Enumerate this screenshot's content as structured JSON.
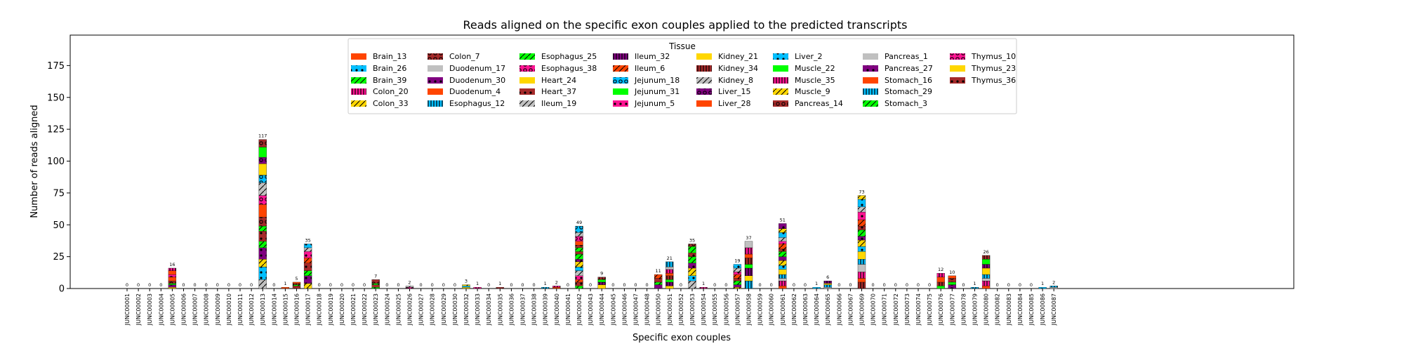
{
  "chart_data": {
    "type": "bar",
    "stacked": true,
    "title": "Reads aligned on the specific exon couples applied to the predicted transcripts",
    "xlabel": "Specific exon couples",
    "ylabel": "Number of reads aligned",
    "ylim": [
      0,
      195
    ],
    "yticks": [
      0,
      25,
      50,
      75,
      100,
      125,
      150,
      175
    ],
    "legend_title": "Tissue",
    "legend_position": "top-center",
    "grid": false,
    "categories": [
      "JUNC00001",
      "JUNC00002",
      "JUNC00003",
      "JUNC00004",
      "JUNC00005",
      "JUNC00006",
      "JUNC00007",
      "JUNC00008",
      "JUNC00009",
      "JUNC00010",
      "JUNC00011",
      "JUNC00012",
      "JUNC00013",
      "JUNC00014",
      "JUNC00015",
      "JUNC00016",
      "JUNC00017",
      "JUNC00018",
      "JUNC00019",
      "JUNC00020",
      "JUNC00021",
      "JUNC00022",
      "JUNC00023",
      "JUNC00024",
      "JUNC00025",
      "JUNC00026",
      "JUNC00027",
      "JUNC00028",
      "JUNC00029",
      "JUNC00030",
      "JUNC00032",
      "JUNC00033",
      "JUNC00034",
      "JUNC00035",
      "JUNC00036",
      "JUNC00037",
      "JUNC00038",
      "JUNC00039",
      "JUNC00040",
      "JUNC00041",
      "JUNC00042",
      "JUNC00043",
      "JUNC00044",
      "JUNC00045",
      "JUNC00046",
      "JUNC00047",
      "JUNC00048",
      "JUNC00050",
      "JUNC00051",
      "JUNC00052",
      "JUNC00053",
      "JUNC00054",
      "JUNC00055",
      "JUNC00056",
      "JUNC00057",
      "JUNC00058",
      "JUNC00059",
      "JUNC00060",
      "JUNC00061",
      "JUNC00062",
      "JUNC00063",
      "JUNC00064",
      "JUNC00065",
      "JUNC00066",
      "JUNC00067",
      "JUNC00069",
      "JUNC00070",
      "JUNC00071",
      "JUNC00072",
      "JUNC00073",
      "JUNC00074",
      "JUNC00075",
      "JUNC00076",
      "JUNC00077",
      "JUNC00078",
      "JUNC00079",
      "JUNC00080",
      "JUNC00082",
      "JUNC00083",
      "JUNC00084",
      "JUNC00085",
      "JUNC00086",
      "JUNC00087"
    ],
    "totals": [
      0,
      0,
      0,
      0,
      16,
      0,
      0,
      0,
      0,
      0,
      0,
      0,
      117,
      0,
      1,
      5,
      35,
      0,
      0,
      0,
      0,
      0,
      7,
      0,
      0,
      2,
      0,
      0,
      0,
      0,
      3,
      1,
      0,
      1,
      0,
      0,
      0,
      1,
      2,
      0,
      49,
      0,
      9,
      0,
      0,
      0,
      0,
      11,
      21,
      0,
      35,
      1,
      0,
      0,
      19,
      37,
      0,
      0,
      51,
      0,
      0,
      1,
      6,
      0,
      0,
      73,
      0,
      0,
      0,
      0,
      0,
      0,
      12,
      10,
      0,
      1,
      26,
      0,
      0,
      0,
      0,
      1,
      2
    ],
    "series": [
      {
        "name": "Brain_13",
        "color": "#ff4500",
        "pattern": "solid"
      },
      {
        "name": "Brain_26",
        "color": "#00bfff",
        "pattern": "dot"
      },
      {
        "name": "Brain_39",
        "color": "#00ff00",
        "pattern": "slash"
      },
      {
        "name": "Colon_20",
        "color": "#ff1493",
        "pattern": "bar"
      },
      {
        "name": "Colon_33",
        "color": "#ffd700",
        "pattern": "slash"
      },
      {
        "name": "Colon_7",
        "color": "#a52a2a",
        "pattern": "ring"
      },
      {
        "name": "Duodenum_17",
        "color": "#c0c0c0",
        "pattern": "solid"
      },
      {
        "name": "Duodenum_30",
        "color": "#800080",
        "pattern": "dot"
      },
      {
        "name": "Duodenum_4",
        "color": "#ff4500",
        "pattern": "solid"
      },
      {
        "name": "Esophagus_12",
        "color": "#00bfff",
        "pattern": "bar"
      },
      {
        "name": "Esophagus_25",
        "color": "#00ff00",
        "pattern": "slash"
      },
      {
        "name": "Esophagus_38",
        "color": "#ff1493",
        "pattern": "ring"
      },
      {
        "name": "Heart_24",
        "color": "#ffd700",
        "pattern": "solid"
      },
      {
        "name": "Heart_37",
        "color": "#a52a2a",
        "pattern": "dot"
      },
      {
        "name": "Ileum_19",
        "color": "#c0c0c0",
        "pattern": "slash"
      },
      {
        "name": "Ileum_32",
        "color": "#800080",
        "pattern": "bar"
      },
      {
        "name": "Ileum_6",
        "color": "#ff4500",
        "pattern": "slash"
      },
      {
        "name": "Jejunum_18",
        "color": "#00bfff",
        "pattern": "ring"
      },
      {
        "name": "Jejunum_31",
        "color": "#00ff00",
        "pattern": "solid"
      },
      {
        "name": "Jejunum_5",
        "color": "#ff1493",
        "pattern": "dot"
      },
      {
        "name": "Kidney_21",
        "color": "#ffd700",
        "pattern": "solid"
      },
      {
        "name": "Kidney_34",
        "color": "#a52a2a",
        "pattern": "bar"
      },
      {
        "name": "Kidney_8",
        "color": "#c0c0c0",
        "pattern": "slash"
      },
      {
        "name": "Liver_15",
        "color": "#800080",
        "pattern": "ring"
      },
      {
        "name": "Liver_28",
        "color": "#ff4500",
        "pattern": "solid"
      },
      {
        "name": "Liver_2",
        "color": "#00bfff",
        "pattern": "dot"
      },
      {
        "name": "Muscle_22",
        "color": "#00ff00",
        "pattern": "solid"
      },
      {
        "name": "Muscle_35",
        "color": "#ff1493",
        "pattern": "bar"
      },
      {
        "name": "Muscle_9",
        "color": "#ffd700",
        "pattern": "slash"
      },
      {
        "name": "Pancreas_14",
        "color": "#a52a2a",
        "pattern": "ring"
      },
      {
        "name": "Pancreas_1",
        "color": "#c0c0c0",
        "pattern": "solid"
      },
      {
        "name": "Pancreas_27",
        "color": "#800080",
        "pattern": "dot"
      },
      {
        "name": "Stomach_16",
        "color": "#ff4500",
        "pattern": "solid"
      },
      {
        "name": "Stomach_29",
        "color": "#00bfff",
        "pattern": "bar"
      },
      {
        "name": "Stomach_3",
        "color": "#00ff00",
        "pattern": "slash"
      },
      {
        "name": "Thymus_10",
        "color": "#ff1493",
        "pattern": "ring"
      },
      {
        "name": "Thymus_23",
        "color": "#ffd700",
        "pattern": "solid"
      },
      {
        "name": "Thymus_36",
        "color": "#a52a2a",
        "pattern": "dot"
      }
    ]
  }
}
